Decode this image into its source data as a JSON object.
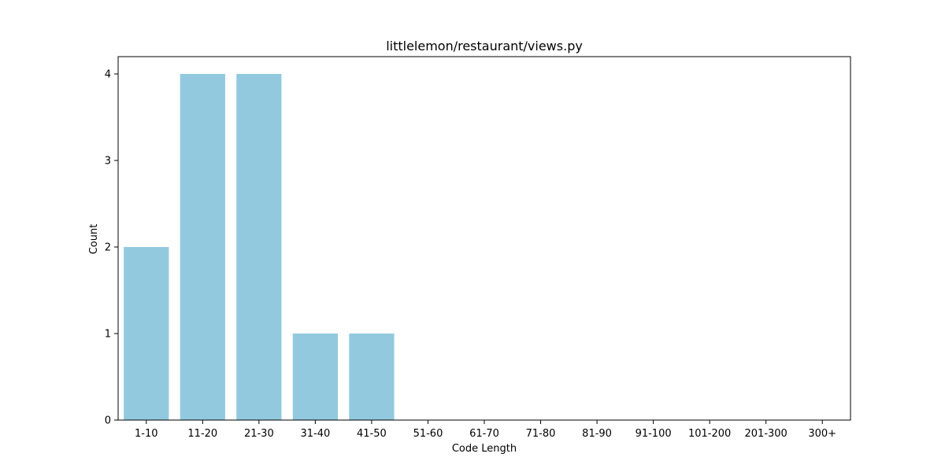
{
  "chart_data": {
    "type": "bar",
    "title": "littlelemon/restaurant/views.py",
    "xlabel": "Code Length",
    "ylabel": "Count",
    "categories": [
      "1-10",
      "11-20",
      "21-30",
      "31-40",
      "41-50",
      "51-60",
      "61-70",
      "71-80",
      "81-90",
      "91-100",
      "101-200",
      "201-300",
      "300+"
    ],
    "values": [
      2,
      4,
      4,
      1,
      1,
      0,
      0,
      0,
      0,
      0,
      0,
      0,
      0
    ],
    "ylim": [
      0,
      4.2
    ],
    "yticks": [
      0,
      1,
      2,
      3,
      4
    ],
    "bar_color": "#92c9df",
    "grid": false,
    "legend": "none"
  }
}
